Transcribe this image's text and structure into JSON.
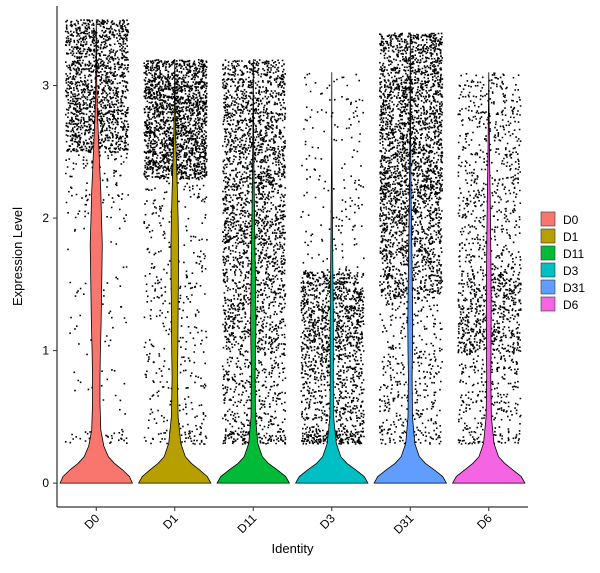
{
  "chart_data": {
    "type": "violin",
    "title": "",
    "xlabel": "Identity",
    "ylabel": "Expression Level",
    "ylim": [
      -0.18,
      3.6
    ],
    "yticks": [
      0,
      1,
      2,
      3
    ],
    "legend_position": "right",
    "grid": false,
    "categories": [
      "D0",
      "D1",
      "D11",
      "D3",
      "D31",
      "D6"
    ],
    "series": [
      {
        "name": "D0",
        "color": "#F8766D",
        "max": 3.5,
        "max_width": 0.48,
        "point_count": 1700,
        "density": [
          [
            0,
            0.96
          ],
          [
            0.05,
            0.88
          ],
          [
            0.1,
            0.7
          ],
          [
            0.15,
            0.48
          ],
          [
            0.2,
            0.32
          ],
          [
            0.28,
            0.2
          ],
          [
            0.4,
            0.12
          ],
          [
            0.6,
            0.1
          ],
          [
            0.8,
            0.1
          ],
          [
            1.0,
            0.11
          ],
          [
            1.2,
            0.13
          ],
          [
            1.4,
            0.14
          ],
          [
            1.6,
            0.15
          ],
          [
            1.8,
            0.16
          ],
          [
            2.0,
            0.14
          ],
          [
            2.2,
            0.12
          ],
          [
            2.4,
            0.09
          ],
          [
            2.6,
            0.06
          ],
          [
            2.8,
            0.03
          ],
          [
            3.0,
            0.015
          ],
          [
            3.2,
            0.008
          ],
          [
            3.5,
            0
          ]
        ],
        "point_bands": [
          [
            0.3,
            0.4,
            0.02
          ],
          [
            0.4,
            2.0,
            0.04
          ],
          [
            2.0,
            2.5,
            0.06
          ],
          [
            2.5,
            3.5,
            0.88
          ]
        ]
      },
      {
        "name": "D1",
        "color": "#B79F00",
        "max": 3.2,
        "max_width": 0.48,
        "point_count": 2300,
        "density": [
          [
            0,
            0.96
          ],
          [
            0.05,
            0.86
          ],
          [
            0.1,
            0.66
          ],
          [
            0.15,
            0.44
          ],
          [
            0.2,
            0.28
          ],
          [
            0.3,
            0.16
          ],
          [
            0.5,
            0.09
          ],
          [
            0.8,
            0.07
          ],
          [
            1.0,
            0.08
          ],
          [
            1.3,
            0.09
          ],
          [
            1.6,
            0.1
          ],
          [
            1.8,
            0.1
          ],
          [
            2.0,
            0.09
          ],
          [
            2.2,
            0.07
          ],
          [
            2.4,
            0.05
          ],
          [
            2.6,
            0.025
          ],
          [
            2.9,
            0.01
          ],
          [
            3.2,
            0
          ]
        ],
        "point_bands": [
          [
            0.3,
            0.4,
            0.03
          ],
          [
            0.4,
            1.0,
            0.05
          ],
          [
            1.0,
            2.3,
            0.1
          ],
          [
            2.3,
            3.2,
            0.82
          ]
        ]
      },
      {
        "name": "D11",
        "color": "#00BA38",
        "max": 3.2,
        "max_width": 0.48,
        "point_count": 2800,
        "density": [
          [
            0,
            0.96
          ],
          [
            0.05,
            0.86
          ],
          [
            0.1,
            0.64
          ],
          [
            0.15,
            0.4
          ],
          [
            0.2,
            0.24
          ],
          [
            0.3,
            0.12
          ],
          [
            0.5,
            0.06
          ],
          [
            0.8,
            0.05
          ],
          [
            1.0,
            0.06
          ],
          [
            1.2,
            0.07
          ],
          [
            1.5,
            0.06
          ],
          [
            1.8,
            0.045
          ],
          [
            2.1,
            0.03
          ],
          [
            2.4,
            0.018
          ],
          [
            2.7,
            0.008
          ],
          [
            3.2,
            0
          ]
        ],
        "point_bands": [
          [
            0.3,
            0.4,
            0.04
          ],
          [
            0.4,
            1.0,
            0.12
          ],
          [
            1.0,
            1.8,
            0.24
          ],
          [
            1.8,
            3.2,
            0.6
          ]
        ]
      },
      {
        "name": "D3",
        "color": "#00BFC4",
        "max": 3.1,
        "max_width": 0.48,
        "point_count": 1700,
        "density": [
          [
            0,
            0.96
          ],
          [
            0.05,
            0.86
          ],
          [
            0.1,
            0.64
          ],
          [
            0.15,
            0.4
          ],
          [
            0.2,
            0.24
          ],
          [
            0.3,
            0.12
          ],
          [
            0.5,
            0.05
          ],
          [
            0.8,
            0.04
          ],
          [
            1.0,
            0.045
          ],
          [
            1.3,
            0.04
          ],
          [
            1.6,
            0.03
          ],
          [
            1.9,
            0.02
          ],
          [
            2.2,
            0.012
          ],
          [
            2.6,
            0.005
          ],
          [
            3.1,
            0
          ]
        ],
        "point_bands": [
          [
            0.3,
            0.4,
            0.1
          ],
          [
            0.4,
            1.0,
            0.3
          ],
          [
            1.0,
            1.6,
            0.5
          ],
          [
            1.6,
            3.1,
            0.1
          ]
        ]
      },
      {
        "name": "D31",
        "color": "#619CFF",
        "max": 3.4,
        "max_width": 0.48,
        "point_count": 3200,
        "density": [
          [
            0,
            0.96
          ],
          [
            0.05,
            0.86
          ],
          [
            0.1,
            0.64
          ],
          [
            0.15,
            0.4
          ],
          [
            0.2,
            0.24
          ],
          [
            0.3,
            0.12
          ],
          [
            0.5,
            0.06
          ],
          [
            0.8,
            0.05
          ],
          [
            1.0,
            0.06
          ],
          [
            1.2,
            0.065
          ],
          [
            1.5,
            0.055
          ],
          [
            1.8,
            0.04
          ],
          [
            2.1,
            0.025
          ],
          [
            2.4,
            0.014
          ],
          [
            2.8,
            0.006
          ],
          [
            3.4,
            0
          ]
        ],
        "point_bands": [
          [
            0.3,
            0.4,
            0.02
          ],
          [
            0.4,
            1.4,
            0.1
          ],
          [
            1.4,
            2.0,
            0.2
          ],
          [
            2.0,
            3.4,
            0.68
          ]
        ]
      },
      {
        "name": "D6",
        "color": "#F564E3",
        "max": 3.1,
        "max_width": 0.48,
        "point_count": 1500,
        "density": [
          [
            0,
            0.96
          ],
          [
            0.05,
            0.86
          ],
          [
            0.1,
            0.64
          ],
          [
            0.15,
            0.42
          ],
          [
            0.2,
            0.26
          ],
          [
            0.3,
            0.14
          ],
          [
            0.5,
            0.07
          ],
          [
            0.8,
            0.055
          ],
          [
            1.0,
            0.06
          ],
          [
            1.3,
            0.065
          ],
          [
            1.6,
            0.06
          ],
          [
            1.9,
            0.05
          ],
          [
            2.2,
            0.035
          ],
          [
            2.5,
            0.02
          ],
          [
            2.8,
            0.008
          ],
          [
            3.1,
            0
          ]
        ],
        "point_bands": [
          [
            0.3,
            0.4,
            0.04
          ],
          [
            0.4,
            1.0,
            0.16
          ],
          [
            1.0,
            1.6,
            0.4
          ],
          [
            1.6,
            3.1,
            0.4
          ]
        ]
      }
    ]
  }
}
